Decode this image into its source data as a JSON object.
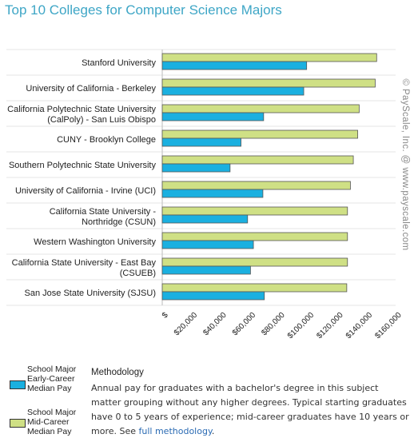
{
  "header": {
    "title": "Top 10 Colleges for Computer Science Majors"
  },
  "credit": "© PayScale, Inc. @ www.payscale.com",
  "legend": [
    {
      "lines": [
        "School Major",
        "Early-Career",
        "Median Pay"
      ],
      "color": "#1ab0e0"
    },
    {
      "lines": [
        "School Major",
        "Mid-Career",
        "Median Pay"
      ],
      "color": "#cfe085"
    }
  ],
  "methodology": {
    "title": "Methodology",
    "body": "Annual pay for graduates with a bachelor's degree in this subject matter grouping without any higher degrees. Typical starting graduates have 0 to 5 years of experience; mid-career graduates have 10 years or more. See ",
    "link_text": "full methodology",
    "end": "."
  },
  "chart_data": {
    "type": "bar",
    "orientation": "horizontal",
    "categories": [
      [
        "Stanford University"
      ],
      [
        "University of California - Berkeley"
      ],
      [
        "California Polytechnic State University",
        "(CalPoly) - San Luis Obispo"
      ],
      [
        "CUNY - Brooklyn College"
      ],
      [
        "Southern Polytechnic State University"
      ],
      [
        "University of California - Irvine (UCI)"
      ],
      [
        "California State University -",
        "Northridge (CSUN)"
      ],
      [
        "Western Washington University"
      ],
      [
        "California State University - East Bay",
        "(CSUEB)"
      ],
      [
        "San Jose State University (SJSU)"
      ]
    ],
    "series": [
      {
        "name": "School Major Mid-Career Median Pay",
        "color": "#cfe085",
        "values": [
          147000,
          146000,
          135000,
          134000,
          131000,
          129000,
          127000,
          127000,
          127000,
          126500
        ]
      },
      {
        "name": "School Major Early-Career Median Pay",
        "color": "#1ab0e0",
        "values": [
          99000,
          97000,
          69500,
          54000,
          46500,
          69000,
          58500,
          62500,
          60500,
          70000
        ]
      }
    ],
    "xlim": [
      0,
      160000
    ],
    "xticks": [
      0,
      20000,
      40000,
      60000,
      80000,
      100000,
      120000,
      140000,
      160000
    ],
    "xtick_labels": [
      "$",
      "$20,000",
      "$40,000",
      "$60,000",
      "$80,000",
      "$100,000",
      "$120,000",
      "$140,000",
      "$160,000"
    ],
    "grid": false,
    "legend_position": "bottom-left"
  }
}
